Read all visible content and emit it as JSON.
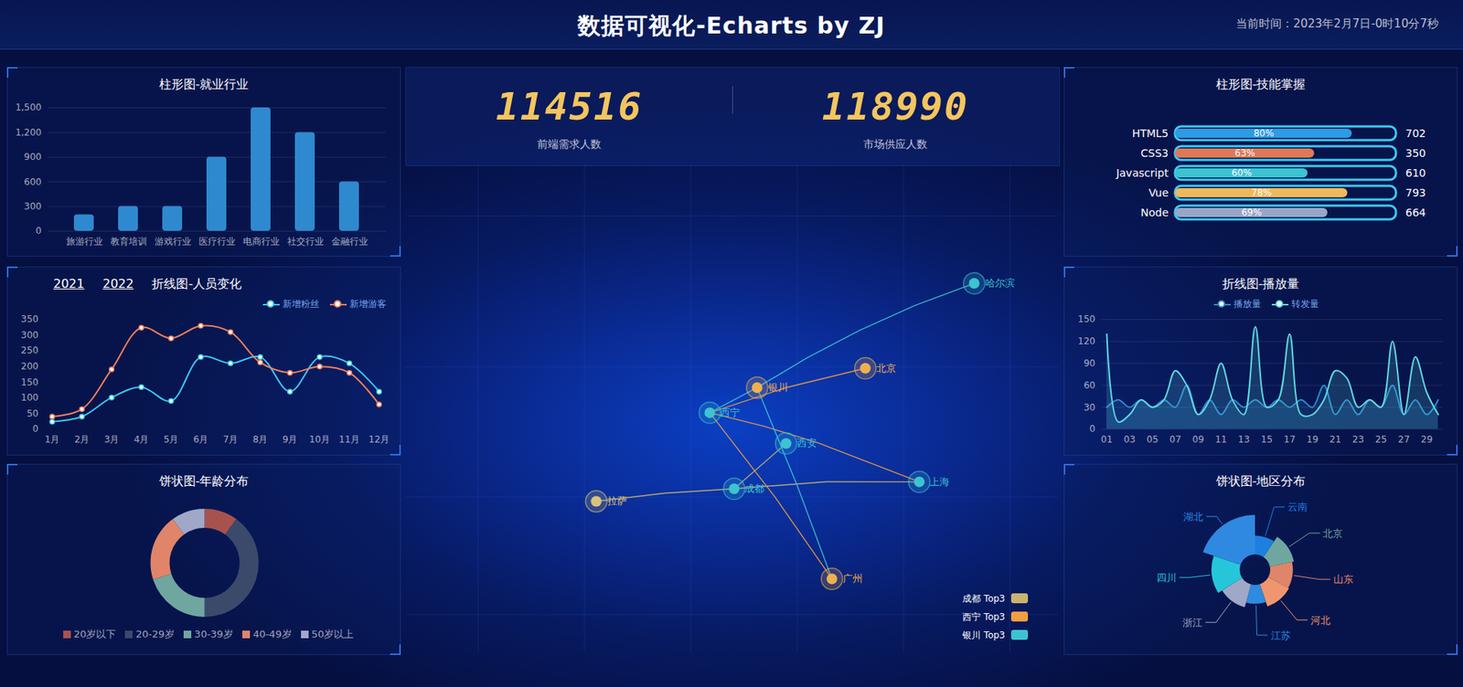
{
  "header": {
    "title": "数据可视化-Echarts by ZJ",
    "time": "当前时间：2023年2月7日-0时10分7秒"
  },
  "kpis": [
    {
      "value": 114516,
      "label": "前端需求人数"
    },
    {
      "value": 118990,
      "label": "市场供应人数"
    }
  ],
  "map": {
    "cities": [
      {
        "name": "哈尔滨",
        "lon": 126.63,
        "lat": 45.75,
        "color": "#3cc4d0"
      },
      {
        "name": "北京",
        "lon": 116.4,
        "lat": 39.9,
        "color": "#f0b050"
      },
      {
        "name": "银川",
        "lon": 106.23,
        "lat": 38.49,
        "color": "#f0b050"
      },
      {
        "name": "西宁",
        "lon": 101.78,
        "lat": 36.62,
        "color": "#3cc4d0"
      },
      {
        "name": "西安",
        "lon": 108.95,
        "lat": 34.27,
        "color": "#3cc4d0"
      },
      {
        "name": "上海",
        "lon": 121.47,
        "lat": 31.23,
        "color": "#3cc4d0"
      },
      {
        "name": "成都",
        "lon": 104.07,
        "lat": 30.67,
        "color": "#3cc4d0"
      },
      {
        "name": "拉萨",
        "lon": 91.11,
        "lat": 29.65,
        "color": "#d8c27a"
      },
      {
        "name": "广州",
        "lon": 113.26,
        "lat": 23.13,
        "color": "#f0b050"
      }
    ],
    "routes": [
      {
        "name": "成都 Top3",
        "color": "#c8b46e",
        "from": "成都",
        "to": [
          "拉萨",
          "西安",
          "上海"
        ]
      },
      {
        "name": "西宁 Top3",
        "color": "#f0a040",
        "from": "西宁",
        "to": [
          "北京",
          "上海",
          "广州"
        ]
      },
      {
        "name": "银川 Top3",
        "color": "#3cc4d0",
        "from": "银川",
        "to": [
          "哈尔滨",
          "西宁",
          "广州"
        ]
      }
    ]
  },
  "chart_data": [
    {
      "type": "bar",
      "title": "柱形图-就业行业",
      "categories": [
        "旅游行业",
        "教育培训",
        "游戏行业",
        "医疗行业",
        "电商行业",
        "社交行业",
        "金融行业"
      ],
      "values": [
        200,
        300,
        300,
        900,
        1500,
        1200,
        600
      ],
      "color": "#2f89cf",
      "ylim": [
        0,
        1500
      ],
      "yticks": [
        0,
        300,
        600,
        900,
        {
          "value": 1200,
          "label": "1,200"
        },
        {
          "value": 1500,
          "label": "1,500"
        }
      ],
      "grid": true
    },
    {
      "type": "line",
      "title": "折线图-人员变化",
      "tabs": [
        "2021",
        "2022"
      ],
      "categories": [
        "1月",
        "2月",
        "3月",
        "4月",
        "5月",
        "6月",
        "7月",
        "8月",
        "9月",
        "10月",
        "11月",
        "12月"
      ],
      "series": [
        {
          "name": "新增粉丝",
          "color": "#3cc8f0",
          "values": [
            24,
            40,
            101,
            134,
            90,
            230,
            210,
            230,
            120,
            230,
            210,
            120
          ]
        },
        {
          "name": "新增游客",
          "color": "#f0805a",
          "values": [
            40,
            64,
            191,
            324,
            290,
            330,
            310,
            213,
            180,
            200,
            180,
            79
          ]
        }
      ],
      "ylim": [
        0,
        350
      ],
      "yticks": [
        0,
        50,
        100,
        150,
        200,
        250,
        300,
        350
      ],
      "legend": "top-right",
      "marker": "circle",
      "grid": false
    },
    {
      "type": "donut",
      "title": "饼状图-年龄分布",
      "categories": [
        "20岁以下",
        "20-29岁",
        "30-39岁",
        "40-49岁",
        "50岁以上"
      ],
      "values": [
        1,
        4,
        2,
        2,
        1
      ],
      "colors": [
        "#a8524e",
        "#3b4a6b",
        "#6fa7a0",
        "#e0856a",
        "#a0a8c8"
      ],
      "legend": "bottom"
    },
    {
      "type": "bar",
      "title": "柱形图-技能掌握",
      "orientation": "horizontal",
      "categories": [
        "HTML5",
        "CSS3",
        "Javascript",
        "Vue",
        "Node"
      ],
      "values": [
        80,
        63,
        60,
        78,
        69
      ],
      "value_labels": [
        "80%",
        "63%",
        "60%",
        "78%",
        "69%"
      ],
      "data_labels": true,
      "totals": [
        702,
        350,
        610,
        793,
        664
      ],
      "colors": [
        "#2e9be6",
        "#e07858",
        "#3cc4d0",
        "#f0b85a",
        "#9aa6c8"
      ],
      "xlim": [
        0,
        100
      ],
      "tick_labels": "y"
    },
    {
      "type": "area",
      "title": "折线图-播放量",
      "categories": [
        "01",
        null,
        "03",
        null,
        "05",
        null,
        "07",
        null,
        "09",
        null,
        "11",
        null,
        "13",
        null,
        "15",
        null,
        "17",
        null,
        "19",
        null,
        "21",
        null,
        "23",
        null,
        "25",
        null,
        "27",
        null,
        "29",
        null
      ],
      "series": [
        {
          "name": "播放量",
          "color": "#2f89cf",
          "values": [
            30,
            40,
            30,
            40,
            30,
            40,
            30,
            60,
            20,
            40,
            20,
            40,
            30,
            40,
            30,
            40,
            30,
            40,
            30,
            60,
            20,
            40,
            20,
            40,
            30,
            60,
            20,
            40,
            20,
            40
          ]
        },
        {
          "name": "转发量",
          "color": "#5fd8e0",
          "values": [
            130,
            10,
            20,
            40,
            30,
            40,
            80,
            60,
            20,
            40,
            90,
            40,
            20,
            140,
            30,
            40,
            130,
            20,
            20,
            40,
            80,
            70,
            30,
            40,
            30,
            120,
            20,
            99,
            50,
            20
          ]
        }
      ],
      "ylim": [
        0,
        150
      ],
      "yticks": [
        0,
        30,
        60,
        90,
        120,
        150
      ],
      "legend": "top",
      "grid": true
    },
    {
      "type": "rose",
      "title": "饼状图-地区分布",
      "categories": [
        "云南",
        "北京",
        "山东",
        "河北",
        "江苏",
        "浙江",
        "四川",
        "湖北"
      ],
      "values": [
        20,
        26,
        24,
        25,
        20,
        25,
        30,
        42
      ],
      "colors": [
        "#1d7fe0",
        "#6fa7a0",
        "#e0856a",
        "#f0966e",
        "#2e8be0",
        "#a0a8c8",
        "#26c6da",
        "#2f89e0"
      ]
    }
  ]
}
